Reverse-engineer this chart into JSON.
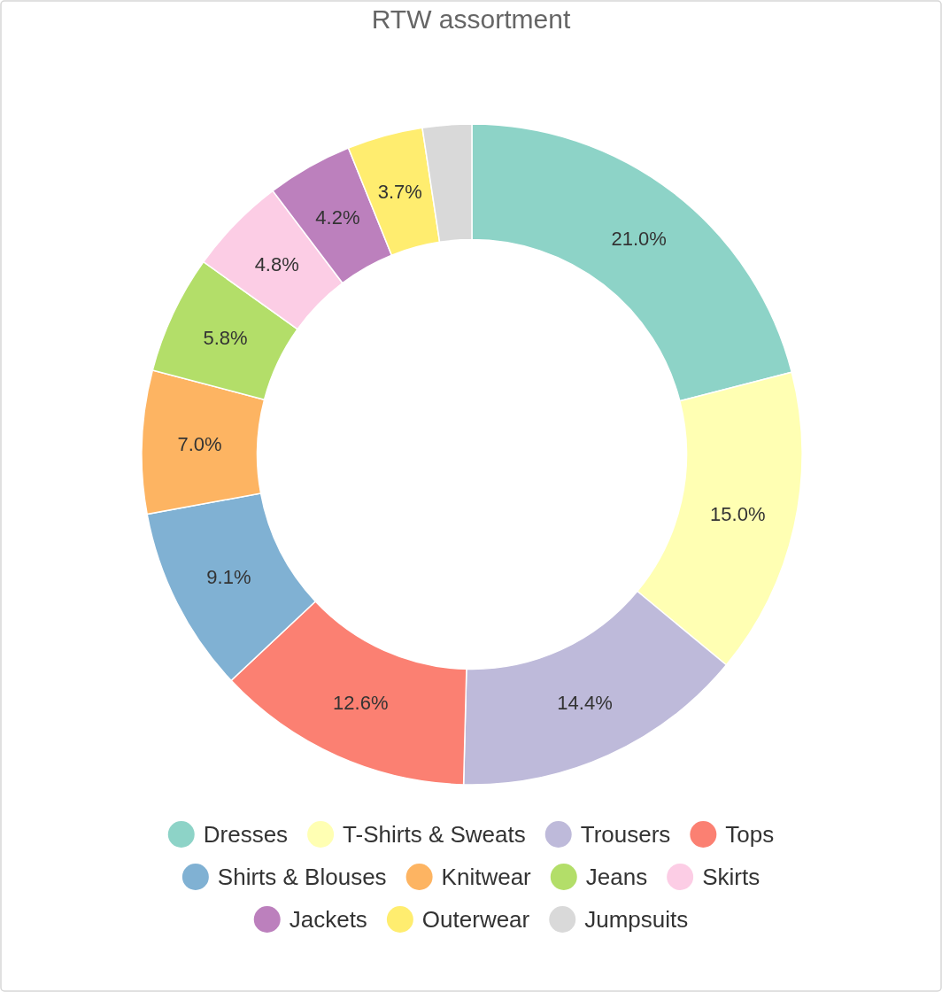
{
  "chart_data": {
    "type": "donut",
    "title": "RTW assortment",
    "categories": [
      "Dresses",
      "T-Shirts & Sweats",
      "Trousers",
      "Tops",
      "Shirts & Blouses",
      "Knitwear",
      "Jeans",
      "Skirts",
      "Jackets",
      "Outerwear",
      "Jumpsuits"
    ],
    "values": [
      21.0,
      15.0,
      14.4,
      12.6,
      9.1,
      7.0,
      5.8,
      4.8,
      4.2,
      3.7,
      2.4
    ],
    "value_labels": [
      "21.0%",
      "15.0%",
      "14.4%",
      "12.6%",
      "9.1%",
      "7.0%",
      "5.8%",
      "4.8%",
      "4.2%",
      "3.7%",
      null
    ],
    "colors": [
      "#8dd3c7",
      "#ffffb3",
      "#bebada",
      "#fb8072",
      "#80b1d3",
      "#fdb462",
      "#b3de69",
      "#fccde5",
      "#bc80bd",
      "#ffed6f",
      "#d9d9d9"
    ],
    "legend": "bottom"
  }
}
